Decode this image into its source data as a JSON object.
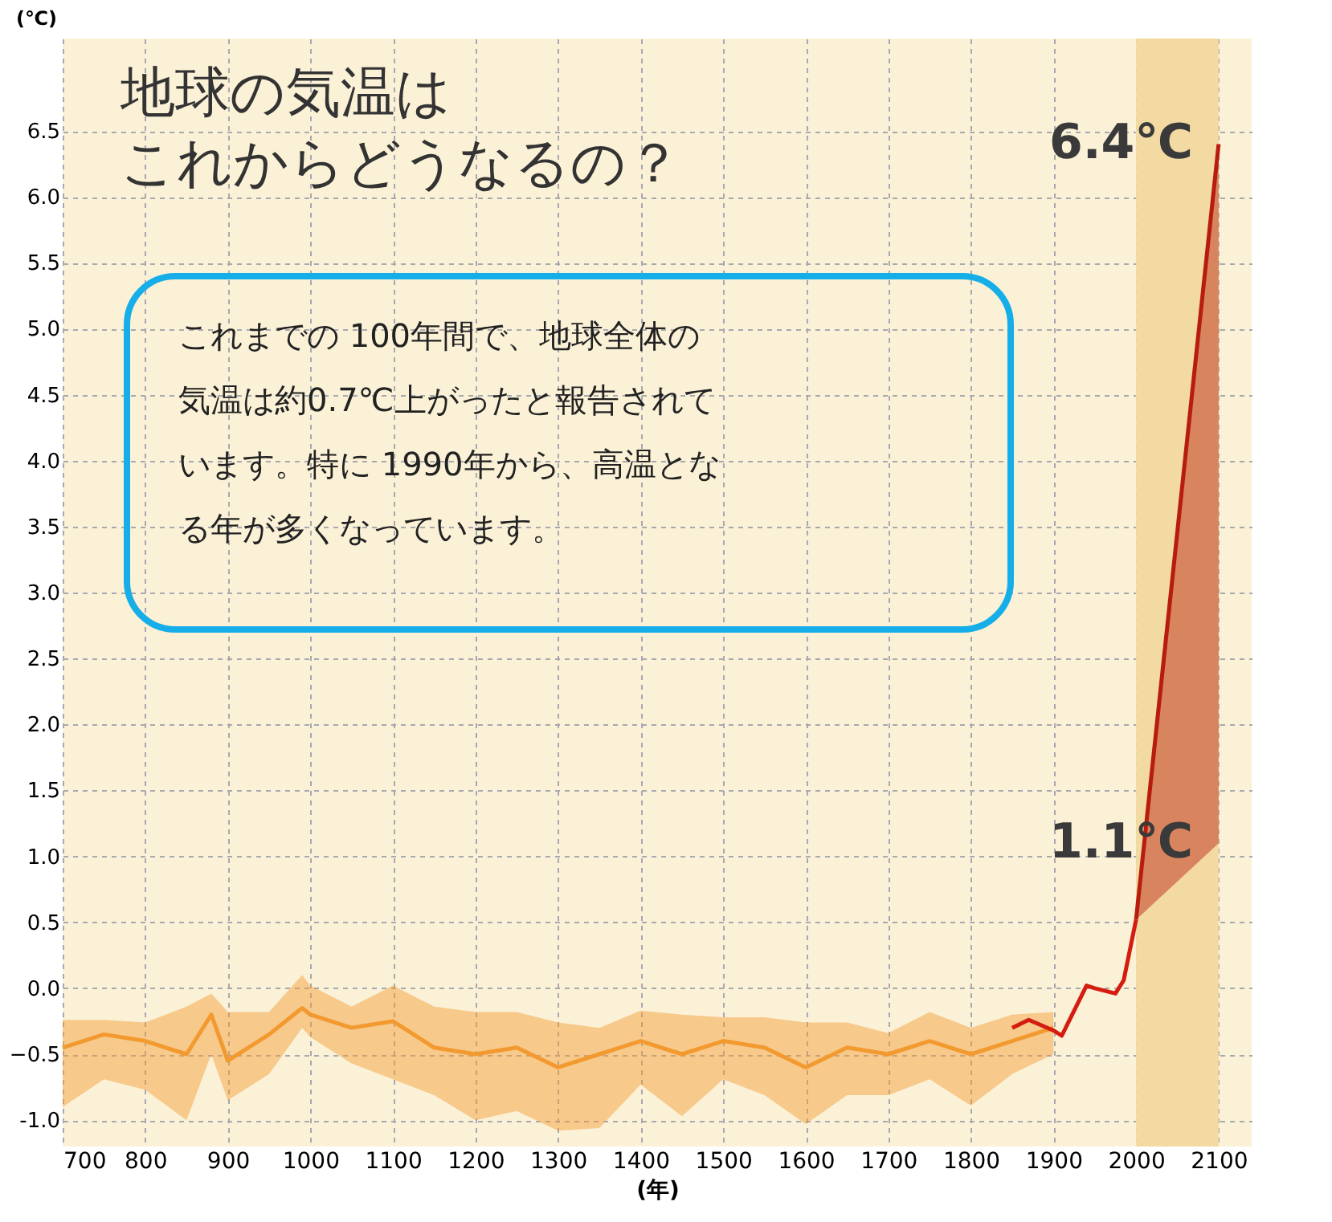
{
  "chart_data": {
    "type": "line",
    "title": "地球の気温はこれからどうなるの？",
    "xlabel": "(年)",
    "ylabel": "(℃)",
    "xlim": [
      700,
      2140
    ],
    "xticks": [
      700,
      800,
      900,
      1000,
      1100,
      1200,
      1300,
      1400,
      1500,
      1600,
      1700,
      1800,
      1900,
      2000,
      2100
    ],
    "ylim": [
      -1.2,
      7.2
    ],
    "yticks": [
      {
        "value": -1,
        "label": "-1.0"
      },
      -0.5,
      {
        "value": 0,
        "label": "0.0"
      },
      0.5,
      {
        "value": 1,
        "label": "1.0"
      },
      1.5,
      {
        "value": 2,
        "label": "2.0"
      },
      2.5,
      {
        "value": 3,
        "label": "3.0"
      },
      3.5,
      {
        "value": 4,
        "label": "4.0"
      },
      4.5,
      {
        "value": 5,
        "label": "5.0"
      },
      5.5,
      {
        "value": 6,
        "label": "6.0"
      },
      6.5
    ],
    "grid": true,
    "bands": [
      {
        "axis": "x",
        "from": 2000,
        "to": 2100,
        "color": "#f3d9a2"
      }
    ],
    "series": [
      {
        "color": "#f29a30",
        "x": [
          700,
          750,
          800,
          850,
          880,
          900,
          950,
          990,
          1000,
          1050,
          1100,
          1150,
          1200,
          1250,
          1300,
          1350,
          1400,
          1450,
          1500,
          1550,
          1600,
          1650,
          1700,
          1750,
          1800,
          1850,
          1900
        ],
        "values": [
          -0.45,
          -0.35,
          -0.4,
          -0.5,
          -0.2,
          -0.55,
          -0.35,
          -0.15,
          -0.2,
          -0.3,
          -0.25,
          -0.45,
          -0.5,
          -0.45,
          -0.6,
          -0.5,
          -0.4,
          -0.5,
          -0.4,
          -0.45,
          -0.6,
          -0.45,
          -0.5,
          -0.4,
          -0.5,
          -0.4,
          -0.3
        ],
        "upper": [
          -0.24,
          -0.24,
          -0.26,
          -0.14,
          -0.04,
          -0.18,
          -0.18,
          0.1,
          0.02,
          -0.14,
          0.02,
          -0.14,
          -0.18,
          -0.18,
          -0.26,
          -0.3,
          -0.17,
          -0.2,
          -0.22,
          -0.22,
          -0.26,
          -0.26,
          -0.34,
          -0.18,
          -0.3,
          -0.2,
          -0.18
        ],
        "lower": [
          -0.9,
          -0.69,
          -0.77,
          -1.0,
          -0.5,
          -0.85,
          -0.65,
          -0.3,
          -0.37,
          -0.57,
          -0.69,
          -0.81,
          -1.0,
          -0.93,
          -1.08,
          -1.06,
          -0.73,
          -0.97,
          -0.69,
          -0.81,
          -1.03,
          -0.81,
          -0.81,
          -0.69,
          -0.89,
          -0.65,
          -0.5
        ]
      },
      {
        "color": "#d41c10",
        "x": [
          1850,
          1870,
          1900,
          1910,
          1940,
          1950,
          1975,
          1985,
          2000
        ],
        "values": [
          -0.3,
          -0.24,
          -0.32,
          -0.36,
          0.02,
          0.0,
          -0.04,
          0.06,
          0.52
        ]
      },
      {
        "color": "#b81c0c",
        "x": [
          2000,
          2100
        ],
        "values": [
          0.52,
          6.4
        ],
        "upper": [
          0.52,
          6.4
        ],
        "lower": [
          0.52,
          1.1
        ]
      }
    ],
    "annotations": [
      {
        "text": "6.4℃",
        "x": 2100,
        "y": 6.4
      },
      {
        "text": "1.1℃",
        "x": 2100,
        "y": 1.1
      },
      "これまでの 100年間で、地球全体の気温は約0.7℃上がったと報告されています。特に 1990年から、高温となる年が多くなっています。"
    ]
  }
}
